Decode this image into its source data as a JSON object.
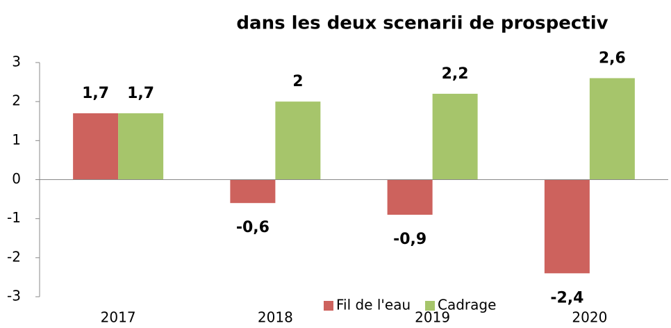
{
  "chart_data": {
    "type": "bar",
    "title": "dans les deux scenarii de prospectiv",
    "categories": [
      "2017",
      "2018",
      "2019",
      "2020"
    ],
    "series": [
      {
        "name": "Fil de l'eau",
        "color": "#cd625d",
        "values": [
          1.7,
          -0.6,
          -0.9,
          -2.4
        ],
        "value_labels": [
          "1,7",
          "-0,6",
          "-0,9",
          "-2,4"
        ]
      },
      {
        "name": "Cadrage",
        "color": "#a6c56b",
        "values": [
          1.7,
          2,
          2.2,
          2.6
        ],
        "value_labels": [
          "1,7",
          "2",
          "2,2",
          "2,6"
        ]
      }
    ],
    "ylim": [
      -3,
      3
    ],
    "yticks": [
      -3,
      -2,
      -1,
      0,
      1,
      2,
      3
    ],
    "grid": false,
    "legend": "bottom"
  }
}
